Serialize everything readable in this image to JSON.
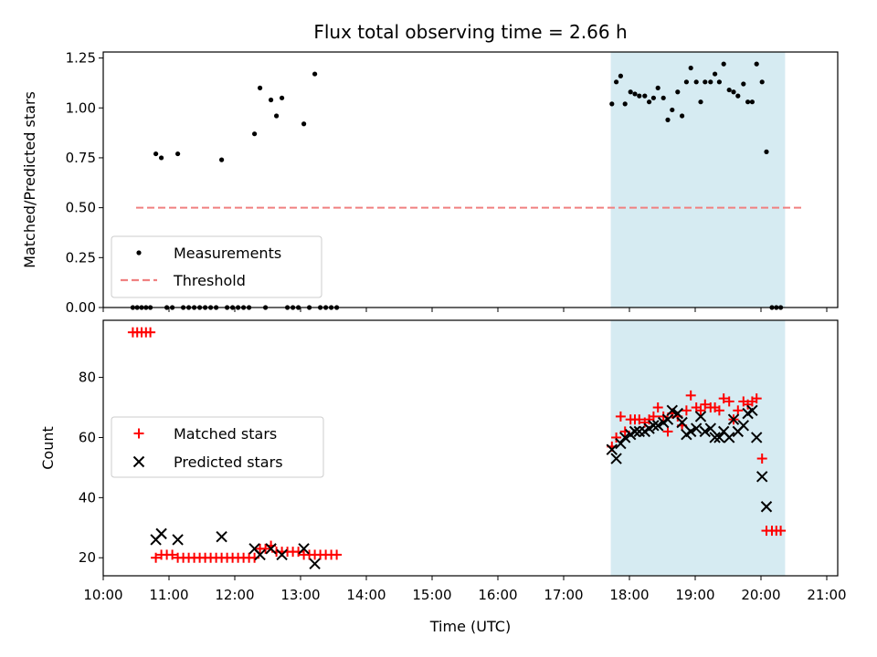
{
  "chart_data": [
    {
      "type": "scatter",
      "title": "Flux total observing time = 2.66 h",
      "ylabel": "Matched/Predicted stars",
      "xlabel": "",
      "xlim": [
        "10:00",
        "21:10"
      ],
      "ylim": [
        0,
        1.28
      ],
      "yticks": [
        "0.00",
        "0.25",
        "0.50",
        "0.75",
        "1.00",
        "1.25"
      ],
      "legend": {
        "placement": "lower-left",
        "entries": [
          "Measurements",
          "Threshold"
        ]
      },
      "shaded_interval": [
        "17:43",
        "20:22"
      ],
      "shade_color": "#add8e6",
      "threshold": {
        "name": "Threshold",
        "y": 0.5,
        "x": [
          "10:30",
          "20:38"
        ],
        "color": "#f08080"
      },
      "series": [
        {
          "name": "Measurements",
          "color": "#000000",
          "points": [
            [
              "10:27",
              0
            ],
            [
              "10:31",
              0
            ],
            [
              "10:35",
              0
            ],
            [
              "10:39",
              0
            ],
            [
              "10:43",
              0
            ],
            [
              "10:48",
              0.77
            ],
            [
              "10:53",
              0.75
            ],
            [
              "10:58",
              0
            ],
            [
              "11:03",
              0
            ],
            [
              "11:08",
              0.77
            ],
            [
              "11:13",
              0
            ],
            [
              "11:18",
              0
            ],
            [
              "11:23",
              0
            ],
            [
              "11:28",
              0
            ],
            [
              "11:33",
              0
            ],
            [
              "11:38",
              0
            ],
            [
              "11:43",
              0
            ],
            [
              "11:48",
              0.74
            ],
            [
              "11:53",
              0
            ],
            [
              "11:58",
              0
            ],
            [
              "12:03",
              0
            ],
            [
              "12:08",
              0
            ],
            [
              "12:13",
              0
            ],
            [
              "12:18",
              0.87
            ],
            [
              "12:23",
              1.1
            ],
            [
              "12:28",
              0
            ],
            [
              "12:33",
              1.04
            ],
            [
              "12:38",
              0.96
            ],
            [
              "12:43",
              1.05
            ],
            [
              "12:48",
              0
            ],
            [
              "12:53",
              0
            ],
            [
              "12:58",
              0
            ],
            [
              "13:03",
              0.92
            ],
            [
              "13:08",
              0
            ],
            [
              "13:13",
              1.17
            ],
            [
              "13:18",
              0
            ],
            [
              "13:23",
              0
            ],
            [
              "13:28",
              0
            ],
            [
              "13:33",
              0
            ],
            [
              "17:44",
              1.02
            ],
            [
              "17:48",
              1.13
            ],
            [
              "17:52",
              1.16
            ],
            [
              "17:56",
              1.02
            ],
            [
              "18:01",
              1.08
            ],
            [
              "18:05",
              1.07
            ],
            [
              "18:09",
              1.06
            ],
            [
              "18:14",
              1.06
            ],
            [
              "18:18",
              1.03
            ],
            [
              "18:22",
              1.05
            ],
            [
              "18:26",
              1.1
            ],
            [
              "18:31",
              1.05
            ],
            [
              "18:35",
              0.94
            ],
            [
              "18:39",
              0.99
            ],
            [
              "18:44",
              1.08
            ],
            [
              "18:48",
              0.96
            ],
            [
              "18:52",
              1.13
            ],
            [
              "18:56",
              1.2
            ],
            [
              "19:01",
              1.13
            ],
            [
              "19:05",
              1.03
            ],
            [
              "19:09",
              1.13
            ],
            [
              "19:14",
              1.13
            ],
            [
              "19:18",
              1.17
            ],
            [
              "19:22",
              1.13
            ],
            [
              "19:26",
              1.22
            ],
            [
              "19:31",
              1.09
            ],
            [
              "19:35",
              1.08
            ],
            [
              "19:39",
              1.06
            ],
            [
              "19:44",
              1.12
            ],
            [
              "19:48",
              1.03
            ],
            [
              "19:52",
              1.03
            ],
            [
              "19:56",
              1.22
            ],
            [
              "20:01",
              1.13
            ],
            [
              "20:05",
              0.78
            ],
            [
              "20:10",
              0
            ],
            [
              "20:14",
              0
            ],
            [
              "20:18",
              0
            ]
          ]
        }
      ]
    },
    {
      "type": "scatter",
      "title": "",
      "xlabel": "Time (UTC)",
      "ylabel": "Count",
      "xlim": [
        "10:00",
        "21:10"
      ],
      "ylim": [
        14,
        99
      ],
      "xticks": [
        "10:00",
        "11:00",
        "12:00",
        "13:00",
        "14:00",
        "15:00",
        "16:00",
        "17:00",
        "18:00",
        "19:00",
        "20:00",
        "21:00"
      ],
      "yticks": [
        "20",
        "40",
        "60",
        "80"
      ],
      "legend": {
        "placement": "center-left",
        "entries": [
          "Matched stars",
          "Predicted stars"
        ]
      },
      "shaded_interval": [
        "17:43",
        "20:22"
      ],
      "shade_color": "#add8e6",
      "series": [
        {
          "name": "Matched stars",
          "marker": "plus",
          "color": "#ff0000",
          "points": [
            [
              "10:27",
              95
            ],
            [
              "10:31",
              95
            ],
            [
              "10:35",
              95
            ],
            [
              "10:39",
              95
            ],
            [
              "10:43",
              95
            ],
            [
              "10:48",
              20
            ],
            [
              "10:53",
              21
            ],
            [
              "10:58",
              21
            ],
            [
              "11:03",
              21
            ],
            [
              "11:08",
              20
            ],
            [
              "11:13",
              20
            ],
            [
              "11:18",
              20
            ],
            [
              "11:23",
              20
            ],
            [
              "11:28",
              20
            ],
            [
              "11:33",
              20
            ],
            [
              "11:38",
              20
            ],
            [
              "11:43",
              20
            ],
            [
              "11:48",
              20
            ],
            [
              "11:53",
              20
            ],
            [
              "11:58",
              20
            ],
            [
              "12:03",
              20
            ],
            [
              "12:08",
              20
            ],
            [
              "12:13",
              20
            ],
            [
              "12:18",
              20
            ],
            [
              "12:23",
              23
            ],
            [
              "12:28",
              23
            ],
            [
              "12:33",
              24
            ],
            [
              "12:38",
              22
            ],
            [
              "12:43",
              22
            ],
            [
              "12:48",
              22
            ],
            [
              "12:53",
              22
            ],
            [
              "12:58",
              22
            ],
            [
              "13:03",
              21
            ],
            [
              "13:08",
              21
            ],
            [
              "13:13",
              21
            ],
            [
              "13:18",
              21
            ],
            [
              "13:23",
              21
            ],
            [
              "13:28",
              21
            ],
            [
              "13:33",
              21
            ],
            [
              "17:44",
              57
            ],
            [
              "17:48",
              60
            ],
            [
              "17:52",
              67
            ],
            [
              "17:56",
              62
            ],
            [
              "18:01",
              66
            ],
            [
              "18:05",
              66
            ],
            [
              "18:09",
              66
            ],
            [
              "18:14",
              65
            ],
            [
              "18:18",
              66
            ],
            [
              "18:22",
              67
            ],
            [
              "18:26",
              70
            ],
            [
              "18:31",
              67
            ],
            [
              "18:35",
              62
            ],
            [
              "18:39",
              68
            ],
            [
              "18:44",
              67
            ],
            [
              "18:48",
              64
            ],
            [
              "18:52",
              69
            ],
            [
              "18:56",
              74
            ],
            [
              "19:01",
              70
            ],
            [
              "19:05",
              69
            ],
            [
              "19:09",
              71
            ],
            [
              "19:14",
              70
            ],
            [
              "19:18",
              70
            ],
            [
              "19:22",
              69
            ],
            [
              "19:26",
              73
            ],
            [
              "19:31",
              72
            ],
            [
              "19:35",
              66
            ],
            [
              "19:39",
              69
            ],
            [
              "19:44",
              72
            ],
            [
              "19:48",
              71
            ],
            [
              "19:52",
              72
            ],
            [
              "19:56",
              73
            ],
            [
              "20:01",
              53
            ],
            [
              "20:05",
              29
            ],
            [
              "20:10",
              29
            ],
            [
              "20:14",
              29
            ],
            [
              "20:18",
              29
            ]
          ]
        },
        {
          "name": "Predicted stars",
          "marker": "x",
          "color": "#000000",
          "points": [
            [
              "10:48",
              26
            ],
            [
              "10:53",
              28
            ],
            [
              "11:08",
              26
            ],
            [
              "11:48",
              27
            ],
            [
              "12:18",
              23
            ],
            [
              "12:23",
              21
            ],
            [
              "12:33",
              23
            ],
            [
              "12:43",
              21
            ],
            [
              "13:03",
              23
            ],
            [
              "13:13",
              18
            ],
            [
              "17:44",
              56
            ],
            [
              "17:48",
              53
            ],
            [
              "17:52",
              58
            ],
            [
              "17:56",
              60
            ],
            [
              "18:01",
              61
            ],
            [
              "18:05",
              62
            ],
            [
              "18:09",
              62
            ],
            [
              "18:14",
              62
            ],
            [
              "18:18",
              63
            ],
            [
              "18:22",
              64
            ],
            [
              "18:26",
              64
            ],
            [
              "18:31",
              65
            ],
            [
              "18:35",
              66
            ],
            [
              "18:39",
              69
            ],
            [
              "18:44",
              68
            ],
            [
              "18:48",
              65
            ],
            [
              "18:52",
              61
            ],
            [
              "18:56",
              62
            ],
            [
              "19:01",
              63
            ],
            [
              "19:05",
              67
            ],
            [
              "19:09",
              62
            ],
            [
              "19:14",
              63
            ],
            [
              "19:18",
              60
            ],
            [
              "19:22",
              60
            ],
            [
              "19:26",
              62
            ],
            [
              "19:31",
              60
            ],
            [
              "19:35",
              66
            ],
            [
              "19:39",
              62
            ],
            [
              "19:44",
              64
            ],
            [
              "19:48",
              68
            ],
            [
              "19:52",
              69
            ],
            [
              "19:56",
              60
            ],
            [
              "20:01",
              47
            ],
            [
              "20:05",
              37
            ]
          ]
        }
      ]
    }
  ]
}
